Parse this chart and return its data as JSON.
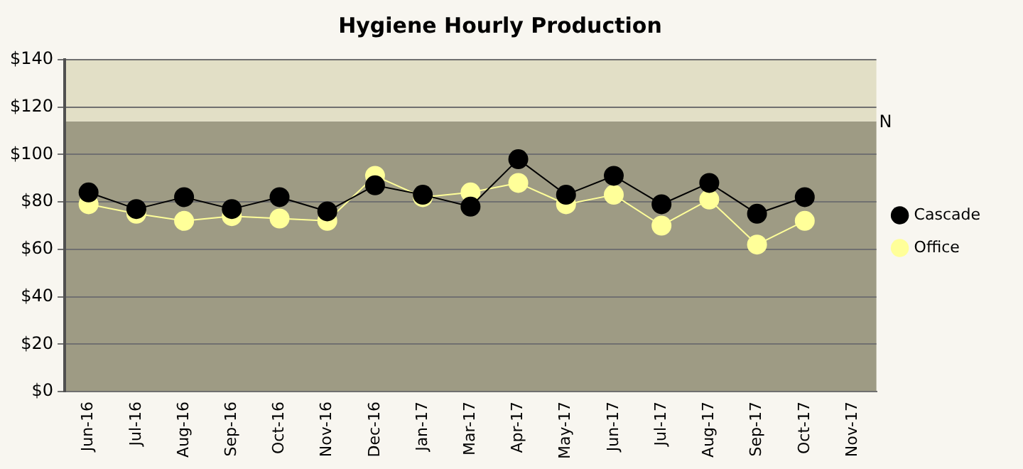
{
  "chart_data": {
    "type": "line",
    "title": "Hygiene Hourly Production",
    "categories": [
      "Jun-16",
      "Jul-16",
      "Aug-16",
      "Sep-16",
      "Oct-16",
      "Nov-16",
      "Dec-16",
      "Jan-17",
      "Mar-17",
      "Apr-17",
      "May-17",
      "Jun-17",
      "Jul-17",
      "Aug-17",
      "Sep-17",
      "Oct-17",
      "Nov-17"
    ],
    "series": [
      {
        "name": "Office",
        "color": "#ffff99",
        "values": [
          79,
          75,
          72,
          74,
          73,
          72,
          91,
          82,
          84,
          88,
          79,
          83,
          70,
          81,
          62,
          72,
          null
        ]
      },
      {
        "name": "Cascade",
        "color": "#000000",
        "values": [
          84,
          77,
          82,
          77,
          82,
          76,
          87,
          83,
          78,
          98,
          83,
          91,
          79,
          88,
          75,
          82,
          null
        ]
      }
    ],
    "ylim": [
      0,
      140
    ],
    "yticks": [
      {
        "value": 0,
        "label": "$0"
      },
      {
        "value": 20,
        "label": "$20"
      },
      {
        "value": 40,
        "label": "$40"
      },
      {
        "value": 60,
        "label": "$60"
      },
      {
        "value": 80,
        "label": "$80"
      },
      {
        "value": 100,
        "label": "$100"
      },
      {
        "value": 120,
        "label": "$120"
      },
      {
        "value": 140,
        "label": "$140"
      }
    ],
    "bands": [
      {
        "axis": "y",
        "from": 0,
        "to": 114,
        "color": "#9e9b84",
        "label": null
      },
      {
        "axis": "y",
        "from": 114,
        "to": 140,
        "color": "#e2dfc6",
        "label": "N"
      }
    ],
    "grid": "y",
    "legend": "right",
    "marker": "circle",
    "line_style": "solid"
  }
}
